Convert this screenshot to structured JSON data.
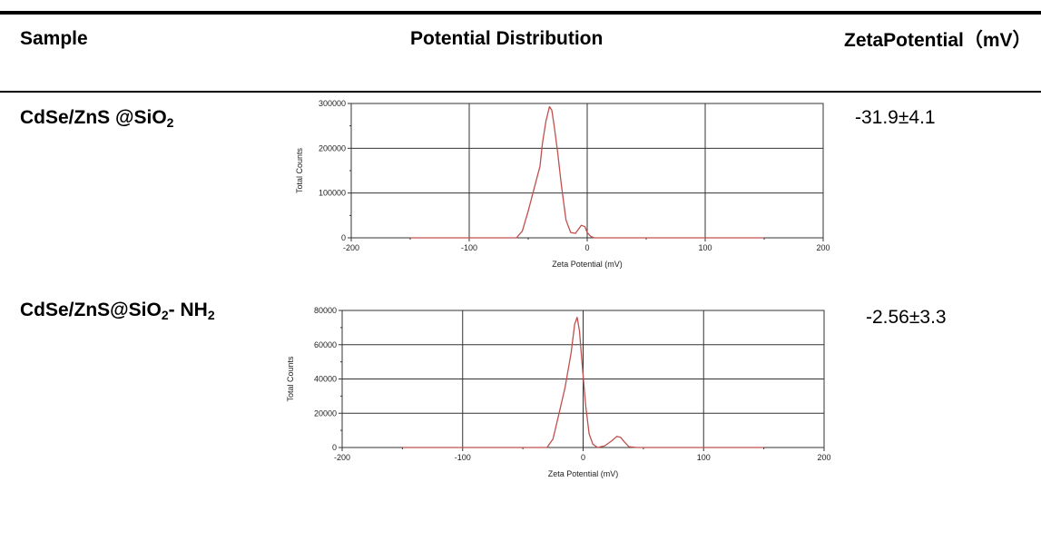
{
  "table": {
    "headers": {
      "sample": "Sample",
      "distribution": "Potential Distribution",
      "zeta": "ZetaPotential（mV）"
    },
    "rows": [
      {
        "sample_main": "CdSe/ZnS @SiO",
        "sample_sub1": "2",
        "sample_tail": "",
        "sample_sub2": "",
        "zeta": "-31.9±4.1"
      },
      {
        "sample_main": "CdSe/ZnS@SiO",
        "sample_sub1": "2",
        "sample_tail": "- NH",
        "sample_sub2": "2",
        "zeta": "-2.56±3.3"
      }
    ]
  },
  "chart_data": [
    {
      "type": "line",
      "xlabel": "Zeta Potential (mV)",
      "ylabel": "Total Counts",
      "xlim": [
        -200,
        200
      ],
      "ylim": [
        0,
        300000
      ],
      "xticks": [
        -200,
        -100,
        0,
        100,
        200
      ],
      "yticks": [
        0,
        100000,
        200000,
        300000
      ],
      "grid": true,
      "line_color": "#c0504d",
      "series": [
        {
          "x": [
            -150,
            -60,
            -55,
            -50,
            -45,
            -40,
            -38,
            -35,
            -32,
            -30,
            -28,
            -25,
            -22,
            -18,
            -14,
            -10,
            -5,
            -2,
            0,
            3,
            6,
            10,
            150
          ],
          "y": [
            0,
            0,
            15000,
            60000,
            110000,
            160000,
            210000,
            260000,
            293000,
            285000,
            250000,
            190000,
            120000,
            40000,
            12000,
            10000,
            28000,
            25000,
            12000,
            3000,
            0,
            0,
            0
          ]
        }
      ]
    },
    {
      "type": "line",
      "xlabel": "Zeta Potential (mV)",
      "ylabel": "Total Counts",
      "xlim": [
        -200,
        200
      ],
      "ylim": [
        0,
        80000
      ],
      "xticks": [
        -200,
        -100,
        0,
        100,
        200
      ],
      "yticks": [
        0,
        20000,
        40000,
        60000,
        80000
      ],
      "grid": true,
      "line_color": "#c0504d",
      "series": [
        {
          "x": [
            -150,
            -30,
            -25,
            -20,
            -15,
            -10,
            -7,
            -5,
            -3,
            -1,
            2,
            5,
            8,
            12,
            18,
            24,
            28,
            31,
            34,
            38,
            45,
            150
          ],
          "y": [
            0,
            0,
            5000,
            20000,
            35000,
            55000,
            72000,
            76000,
            68000,
            50000,
            25000,
            8000,
            2000,
            0,
            1000,
            4000,
            6500,
            6000,
            3500,
            500,
            0,
            0
          ]
        }
      ]
    }
  ]
}
